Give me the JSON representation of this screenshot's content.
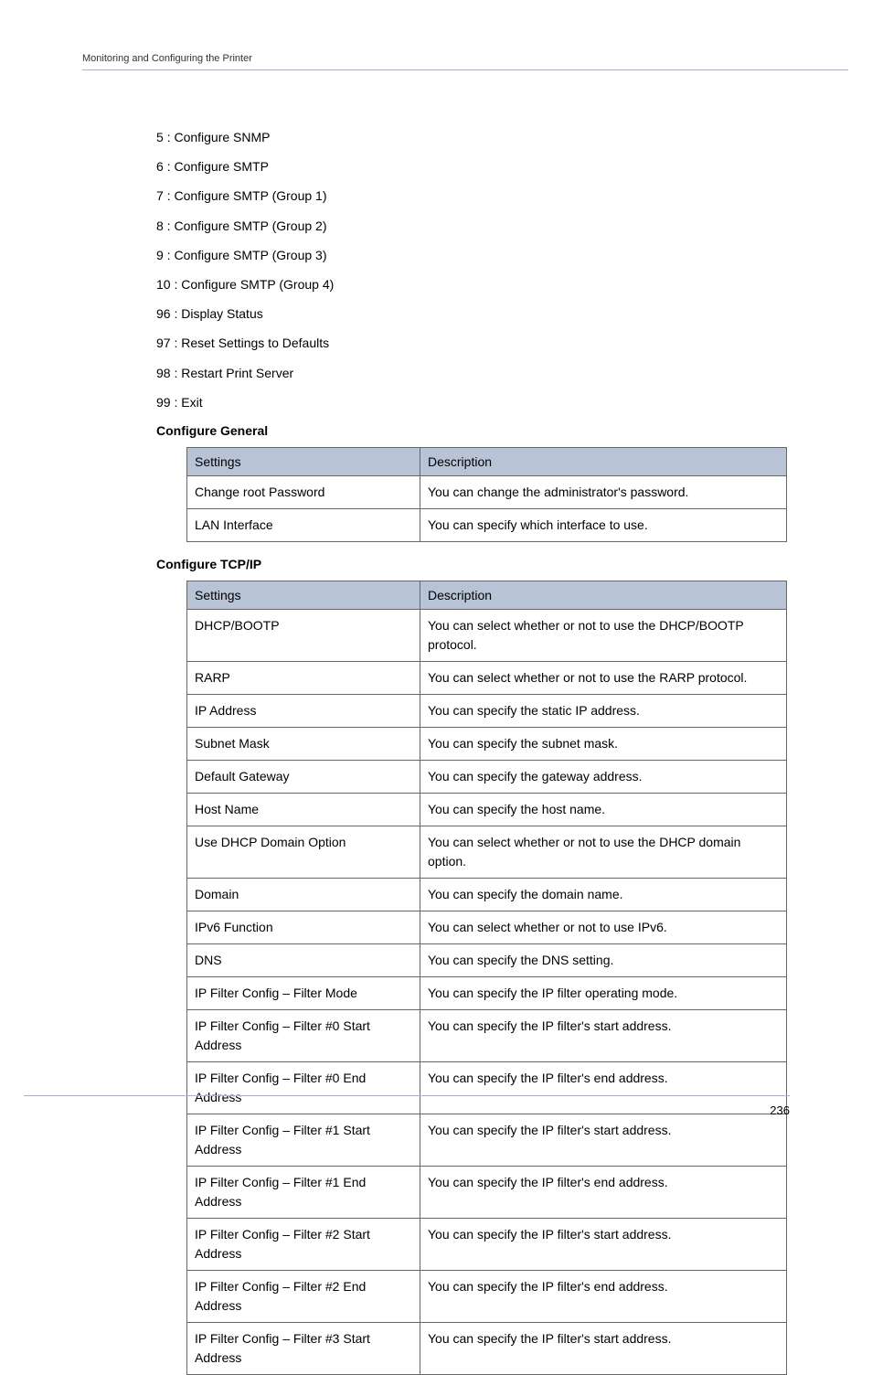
{
  "header": {
    "breadcrumb": "Monitoring and Configuring the Printer"
  },
  "menu_items": [
    "5 : Configure SNMP",
    "6 : Configure SMTP",
    "7 : Configure SMTP (Group 1)",
    "8 : Configure SMTP (Group 2)",
    "9 : Configure SMTP (Group 3)",
    "10 : Configure SMTP (Group 4)",
    "96 : Display Status",
    "97 : Reset Settings to Defaults",
    "98 : Restart Print Server",
    "99 : Exit"
  ],
  "sections": {
    "general": {
      "heading": "Configure General",
      "columns": [
        "Settings",
        "Description"
      ],
      "rows": [
        [
          "Change root Password",
          "You can change the administrator's password."
        ],
        [
          "LAN Interface",
          "You can specify which interface to use."
        ]
      ]
    },
    "tcpip": {
      "heading": "Configure TCP/IP",
      "columns": [
        "Settings",
        "Description"
      ],
      "rows": [
        [
          "DHCP/BOOTP",
          "You can select whether or not to use the DHCP/BOOTP protocol."
        ],
        [
          "RARP",
          "You can select whether or not to use the RARP protocol."
        ],
        [
          "IP Address",
          "You can specify the static IP address."
        ],
        [
          "Subnet Mask",
          "You can specify the subnet mask."
        ],
        [
          "Default Gateway",
          "You can specify the gateway address."
        ],
        [
          "Host Name",
          "You can specify the host name."
        ],
        [
          "Use DHCP Domain Option",
          "You can select whether or not to use the DHCP domain option."
        ],
        [
          "Domain",
          "You can specify the domain name."
        ],
        [
          "IPv6 Function",
          "You can select whether or not to use IPv6."
        ],
        [
          "DNS",
          "You can specify the DNS setting."
        ],
        [
          "IP Filter Config – Filter Mode",
          "You can specify the IP filter operating mode."
        ],
        [
          "IP Filter Config – Filter #0 Start Address",
          "You can specify the IP filter's start address."
        ],
        [
          "IP Filter Config – Filter #0 End Address",
          "You can specify the IP filter's end address."
        ],
        [
          "IP Filter Config – Filter #1 Start Address",
          "You can specify the IP filter's start address."
        ],
        [
          "IP Filter Config – Filter #1 End Address",
          "You can specify the IP filter's end address."
        ],
        [
          "IP Filter Config – Filter #2 Start Address",
          "You can specify the IP filter's start address."
        ],
        [
          "IP Filter Config – Filter #2 End Address",
          "You can specify the IP filter's end address."
        ],
        [
          "IP Filter Config – Filter #3 Start Address",
          "You can specify the IP filter's start address."
        ]
      ]
    }
  },
  "footer": {
    "page_number": "236"
  },
  "styles": {
    "header_bg": "#b8c4d6",
    "border_color": "#666666",
    "rule_color": "#b0b0c0",
    "text_color": "#000000"
  }
}
